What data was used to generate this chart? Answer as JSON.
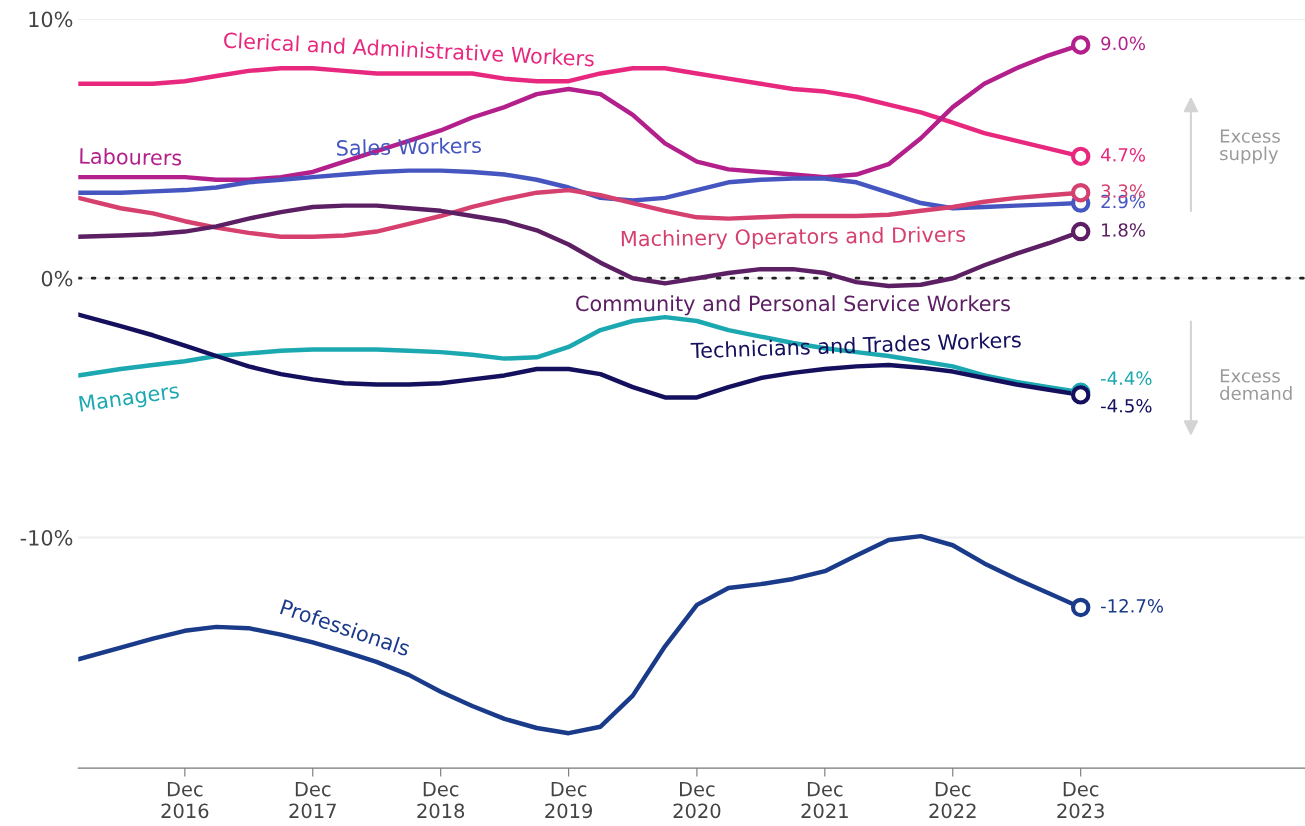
{
  "chart_data": {
    "type": "line",
    "x": [
      "2016-02",
      "2016-06",
      "2016-09",
      "2016-12",
      "2017-03",
      "2017-06",
      "2017-09",
      "2017-12",
      "2018-03",
      "2018-06",
      "2018-09",
      "2018-12",
      "2019-03",
      "2019-06",
      "2019-09",
      "2019-12",
      "2020-03",
      "2020-06",
      "2020-09",
      "2020-12",
      "2021-03",
      "2021-06",
      "2021-09",
      "2021-12",
      "2022-03",
      "2022-06",
      "2022-09",
      "2022-12",
      "2023-03",
      "2023-06",
      "2023-09",
      "2023-12"
    ],
    "series": [
      {
        "name": "Clerical and Administrative Workers",
        "color": "#e8287e",
        "values": [
          7.5,
          7.5,
          7.5,
          7.6,
          7.8,
          8.0,
          8.1,
          8.1,
          8.0,
          7.9,
          7.9,
          7.9,
          7.9,
          7.7,
          7.6,
          7.6,
          7.9,
          8.1,
          8.1,
          7.9,
          7.7,
          7.5,
          7.3,
          7.2,
          7.0,
          6.7,
          6.4,
          6.0,
          5.6,
          5.3,
          5.0,
          4.7
        ],
        "value_labels": [
          null,
          null,
          null,
          null,
          null,
          null,
          null,
          null,
          null,
          null,
          null,
          null,
          null,
          null,
          null,
          null,
          null,
          null,
          null,
          null,
          null,
          null,
          null,
          null,
          null,
          null,
          null,
          null,
          null,
          null,
          null,
          "4.7%"
        ]
      },
      {
        "name": "Labourers",
        "color": "#b3208b",
        "values": [
          3.9,
          3.9,
          3.9,
          3.9,
          3.8,
          3.8,
          3.9,
          4.1,
          4.5,
          4.9,
          5.3,
          5.7,
          6.2,
          6.6,
          7.1,
          7.3,
          7.1,
          6.3,
          5.2,
          4.5,
          4.2,
          4.1,
          4.0,
          3.9,
          4.0,
          4.4,
          5.4,
          6.6,
          7.5,
          8.1,
          8.6,
          9.0
        ],
        "value_labels": [
          null,
          null,
          null,
          null,
          null,
          null,
          null,
          null,
          null,
          null,
          null,
          null,
          null,
          null,
          null,
          null,
          null,
          null,
          null,
          null,
          null,
          null,
          null,
          null,
          null,
          null,
          null,
          null,
          null,
          null,
          null,
          "9.0%"
        ]
      },
      {
        "name": "Sales Workers",
        "color": "#4556c0",
        "values": [
          3.3,
          3.3,
          3.35,
          3.4,
          3.5,
          3.7,
          3.8,
          3.9,
          4.0,
          4.1,
          4.15,
          4.15,
          4.1,
          4.0,
          3.8,
          3.5,
          3.1,
          3.0,
          3.1,
          3.4,
          3.7,
          3.8,
          3.85,
          3.85,
          3.7,
          3.3,
          2.9,
          2.7,
          2.75,
          2.8,
          2.85,
          2.9
        ],
        "value_labels": [
          null,
          null,
          null,
          null,
          null,
          null,
          null,
          null,
          null,
          null,
          null,
          null,
          null,
          null,
          null,
          null,
          null,
          null,
          null,
          null,
          null,
          null,
          null,
          null,
          null,
          null,
          null,
          null,
          null,
          null,
          null,
          "2.9%"
        ]
      },
      {
        "name": "Machinery Operators and Drivers",
        "color": "#d6406f",
        "values": [
          3.1,
          2.7,
          2.5,
          2.2,
          1.95,
          1.75,
          1.6,
          1.6,
          1.65,
          1.8,
          2.1,
          2.4,
          2.75,
          3.05,
          3.3,
          3.4,
          3.2,
          2.9,
          2.6,
          2.35,
          2.3,
          2.35,
          2.4,
          2.4,
          2.4,
          2.45,
          2.6,
          2.75,
          2.95,
          3.1,
          3.2,
          3.3
        ],
        "value_labels": [
          null,
          null,
          null,
          null,
          null,
          null,
          null,
          null,
          null,
          null,
          null,
          null,
          null,
          null,
          null,
          null,
          null,
          null,
          null,
          null,
          null,
          null,
          null,
          null,
          null,
          null,
          null,
          null,
          null,
          null,
          null,
          "3.3%"
        ]
      },
      {
        "name": "Community and Personal Service Workers",
        "color": "#5c1f63",
        "values": [
          1.6,
          1.65,
          1.7,
          1.8,
          2.0,
          2.3,
          2.55,
          2.75,
          2.8,
          2.8,
          2.7,
          2.6,
          2.4,
          2.2,
          1.85,
          1.3,
          0.6,
          0.0,
          -0.2,
          0.0,
          0.2,
          0.35,
          0.35,
          0.2,
          -0.15,
          -0.3,
          -0.25,
          0.0,
          0.5,
          0.95,
          1.35,
          1.8
        ],
        "value_labels": [
          null,
          null,
          null,
          null,
          null,
          null,
          null,
          null,
          null,
          null,
          null,
          null,
          null,
          null,
          null,
          null,
          null,
          null,
          null,
          null,
          null,
          null,
          null,
          null,
          null,
          null,
          null,
          null,
          null,
          null,
          null,
          "1.8%"
        ]
      },
      {
        "name": "Managers",
        "color": "#1ba8b0",
        "values": [
          -3.75,
          -3.5,
          -3.35,
          -3.2,
          -3.0,
          -2.9,
          -2.8,
          -2.75,
          -2.75,
          -2.75,
          -2.8,
          -2.85,
          -2.95,
          -3.1,
          -3.05,
          -2.65,
          -2.0,
          -1.65,
          -1.5,
          -1.65,
          -2.0,
          -2.25,
          -2.5,
          -2.7,
          -2.85,
          -3.0,
          -3.2,
          -3.4,
          -3.75,
          -4.0,
          -4.2,
          -4.4
        ],
        "value_labels": [
          null,
          null,
          null,
          null,
          null,
          null,
          null,
          null,
          null,
          null,
          null,
          null,
          null,
          null,
          null,
          null,
          null,
          null,
          null,
          null,
          null,
          null,
          null,
          null,
          null,
          null,
          null,
          null,
          null,
          null,
          null,
          "-4.4%"
        ]
      },
      {
        "name": "Technicians and Trades Workers",
        "color": "#15105e",
        "values": [
          -1.4,
          -1.85,
          -2.2,
          -2.6,
          -3.0,
          -3.4,
          -3.7,
          -3.9,
          -4.05,
          -4.1,
          -4.1,
          -4.05,
          -3.9,
          -3.75,
          -3.5,
          -3.5,
          -3.7,
          -4.2,
          -4.6,
          -4.6,
          -4.2,
          -3.85,
          -3.65,
          -3.5,
          -3.4,
          -3.35,
          -3.45,
          -3.6,
          -3.85,
          -4.1,
          -4.3,
          -4.5
        ],
        "value_labels": [
          null,
          null,
          null,
          null,
          null,
          null,
          null,
          null,
          null,
          null,
          null,
          null,
          null,
          null,
          null,
          null,
          null,
          null,
          null,
          null,
          null,
          null,
          null,
          null,
          null,
          null,
          null,
          null,
          null,
          null,
          null,
          "-4.5%"
        ]
      },
      {
        "name": "Professionals",
        "color": "#1a3a8a",
        "values": [
          -14.7,
          -14.25,
          -13.9,
          -13.6,
          -13.45,
          -13.5,
          -13.75,
          -14.05,
          -14.4,
          -14.8,
          -15.3,
          -15.95,
          -16.5,
          -17.0,
          -17.35,
          -17.55,
          -17.3,
          -16.1,
          -14.2,
          -12.6,
          -11.95,
          -11.8,
          -11.6,
          -11.3,
          -10.7,
          -10.1,
          -9.95,
          -10.3,
          -11.0,
          -11.6,
          -12.15,
          -12.7
        ],
        "value_labels": [
          null,
          null,
          null,
          null,
          null,
          null,
          null,
          null,
          null,
          null,
          null,
          null,
          null,
          null,
          null,
          null,
          null,
          null,
          null,
          null,
          null,
          null,
          null,
          null,
          null,
          null,
          null,
          null,
          null,
          null,
          null,
          "-12.7%"
        ]
      }
    ],
    "xlim": [
      "2016-02",
      "2025-09"
    ],
    "xticks": [
      {
        "value": "2016-12",
        "label": "Dec\n2016"
      },
      {
        "value": "2017-12",
        "label": "Dec\n2017"
      },
      {
        "value": "2018-12",
        "label": "Dec\n2018"
      },
      {
        "value": "2019-12",
        "label": "Dec\n2019"
      },
      {
        "value": "2020-12",
        "label": "Dec\n2020"
      },
      {
        "value": "2021-12",
        "label": "Dec\n2021"
      },
      {
        "value": "2022-12",
        "label": "Dec\n2022"
      },
      {
        "value": "2023-12",
        "label": "Dec\n2023"
      }
    ],
    "ylim": [
      -18.9,
      10
    ],
    "yticks": [
      {
        "value": 10,
        "label": "10%"
      },
      {
        "value": 0,
        "label": "0%"
      },
      {
        "value": -10,
        "label": "-10%"
      }
    ],
    "grid": "y",
    "ref_lines": [
      {
        "axis": "y",
        "value": 0,
        "color": "#222222",
        "line_style": "dotted"
      }
    ],
    "annotations": [
      "Excess\nsupply",
      "Excess\ndemand"
    ]
  }
}
